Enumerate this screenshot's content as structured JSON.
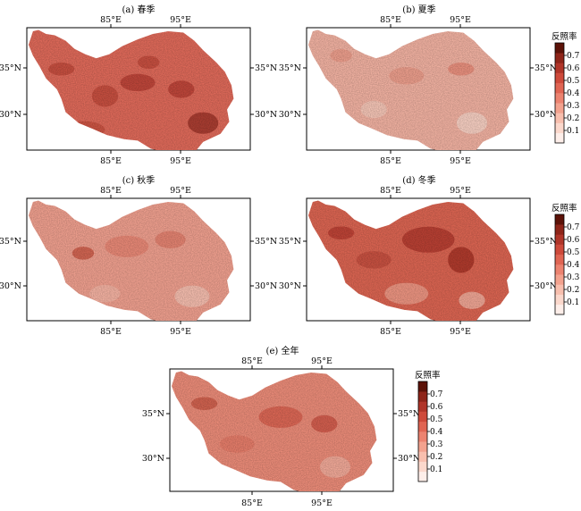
{
  "panels": [
    {
      "title": "(a) 春季",
      "x_ticks": [
        "85°E",
        "95°E"
      ],
      "y_ticks": [
        "35°N",
        "30°N"
      ],
      "fill": "#e06a5a",
      "blotches": [
        [
          0.5,
          0.4,
          0.08,
          0.04,
          "#b84035"
        ],
        [
          0.35,
          0.5,
          0.06,
          0.05,
          "#c24a3c"
        ],
        [
          0.7,
          0.45,
          0.06,
          0.04,
          "#b84035"
        ],
        [
          0.8,
          0.7,
          0.07,
          0.05,
          "#a0352a"
        ],
        [
          0.25,
          0.75,
          0.1,
          0.04,
          "#c8503f"
        ],
        [
          0.55,
          0.25,
          0.05,
          0.03,
          "#c24a3c"
        ],
        [
          0.15,
          0.3,
          0.06,
          0.03,
          "#c24a3c"
        ]
      ]
    },
    {
      "title": "(b) 夏季",
      "x_ticks": [
        "85°E",
        "95°E"
      ],
      "y_ticks": [
        "35°N",
        "30°N"
      ],
      "fill": "#f2b2a2",
      "blotches": [
        [
          0.45,
          0.35,
          0.08,
          0.04,
          "#eb9a88"
        ],
        [
          0.7,
          0.3,
          0.06,
          0.03,
          "#e88a78"
        ],
        [
          0.3,
          0.6,
          0.06,
          0.04,
          "#f6c8ba"
        ],
        [
          0.75,
          0.7,
          0.07,
          0.05,
          "#f8d3c8"
        ],
        [
          0.15,
          0.2,
          0.05,
          0.03,
          "#eb9a88"
        ]
      ]
    },
    {
      "title": "(c) 秋季",
      "x_ticks": [
        "85°E",
        "95°E"
      ],
      "y_ticks": [
        "35°N",
        "30°N"
      ],
      "fill": "#f0a08f",
      "blotches": [
        [
          0.45,
          0.35,
          0.1,
          0.05,
          "#e88573"
        ],
        [
          0.25,
          0.4,
          0.05,
          0.03,
          "#cc5a48"
        ],
        [
          0.65,
          0.3,
          0.07,
          0.04,
          "#e27e6c"
        ],
        [
          0.75,
          0.72,
          0.08,
          0.05,
          "#f6c2b4"
        ],
        [
          0.35,
          0.7,
          0.07,
          0.04,
          "#f4b5a6"
        ]
      ]
    },
    {
      "title": "(d) 冬季",
      "x_ticks": [
        "85°E",
        "95°E"
      ],
      "y_ticks": [
        "35°N",
        "30°N"
      ],
      "fill": "#dc6552",
      "blotches": [
        [
          0.55,
          0.3,
          0.12,
          0.06,
          "#b33a2e"
        ],
        [
          0.7,
          0.45,
          0.06,
          0.06,
          "#a83226"
        ],
        [
          0.3,
          0.45,
          0.08,
          0.04,
          "#c44d3e"
        ],
        [
          0.45,
          0.7,
          0.1,
          0.05,
          "#ee9c8a"
        ],
        [
          0.75,
          0.75,
          0.06,
          0.04,
          "#f2b0a0"
        ],
        [
          0.15,
          0.25,
          0.06,
          0.03,
          "#b83d31"
        ]
      ]
    },
    {
      "title": "(e) 全年",
      "x_ticks": [
        "85°E",
        "95°E"
      ],
      "y_ticks": [
        "35°N",
        "30°N"
      ],
      "fill": "#ec8c79",
      "blotches": [
        [
          0.5,
          0.35,
          0.1,
          0.05,
          "#d9604f"
        ],
        [
          0.7,
          0.4,
          0.06,
          0.04,
          "#cf5646"
        ],
        [
          0.3,
          0.55,
          0.08,
          0.04,
          "#e57a67"
        ],
        [
          0.75,
          0.72,
          0.07,
          0.05,
          "#f2ae9e"
        ],
        [
          0.15,
          0.25,
          0.06,
          0.03,
          "#cc5a48"
        ]
      ]
    }
  ],
  "colorbar": {
    "title": "反照率",
    "ticks": [
      "0.7",
      "0.6",
      "0.5",
      "0.4",
      "0.3",
      "0.2",
      "0.1"
    ],
    "colors": [
      "#fdeee9",
      "#fbd8cc",
      "#f8bfae",
      "#f3a28e",
      "#ec8370",
      "#e06553",
      "#ce4a3b",
      "#b03529",
      "#8e2519",
      "#5c1208"
    ]
  }
}
